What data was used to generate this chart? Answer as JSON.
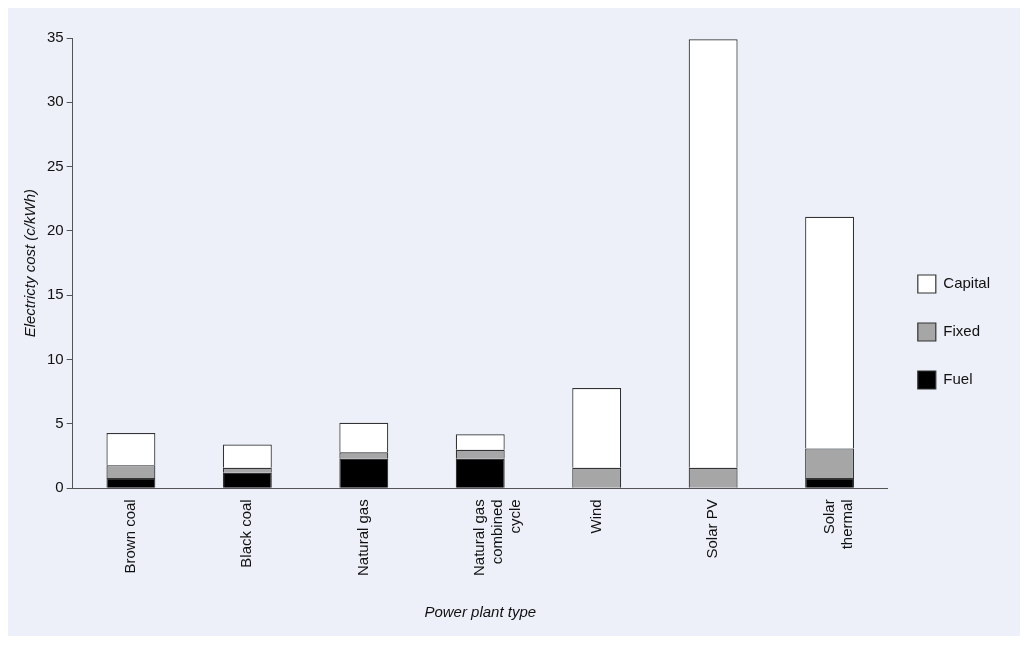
{
  "chart_data": {
    "type": "bar",
    "stacked": true,
    "xlabel": "Power plant type",
    "ylabel": "Electricty cost (c/kWh)",
    "categories": [
      "Brown coal",
      "Black coal",
      "Natural gas",
      "Natural gas combined cycle",
      "Wind",
      "Solar PV",
      "Solar thermal"
    ],
    "series": [
      {
        "name": "Fuel",
        "color": "#000000",
        "values": [
          0.8,
          1.2,
          2.3,
          2.3,
          0,
          0,
          0.8
        ]
      },
      {
        "name": "Fixed",
        "color": "#a6a6a6",
        "values": [
          1.0,
          0.4,
          0.5,
          0.7,
          1.6,
          1.6,
          2.3
        ]
      },
      {
        "name": "Capital",
        "color": "#ffffff",
        "values": [
          2.5,
          1.8,
          2.3,
          1.2,
          6.2,
          33.3,
          18.0
        ]
      }
    ],
    "ylim": [
      0,
      35
    ],
    "yticks": [
      0,
      5,
      10,
      15,
      20,
      25,
      30,
      35
    ],
    "grid": false,
    "legend": "right"
  }
}
